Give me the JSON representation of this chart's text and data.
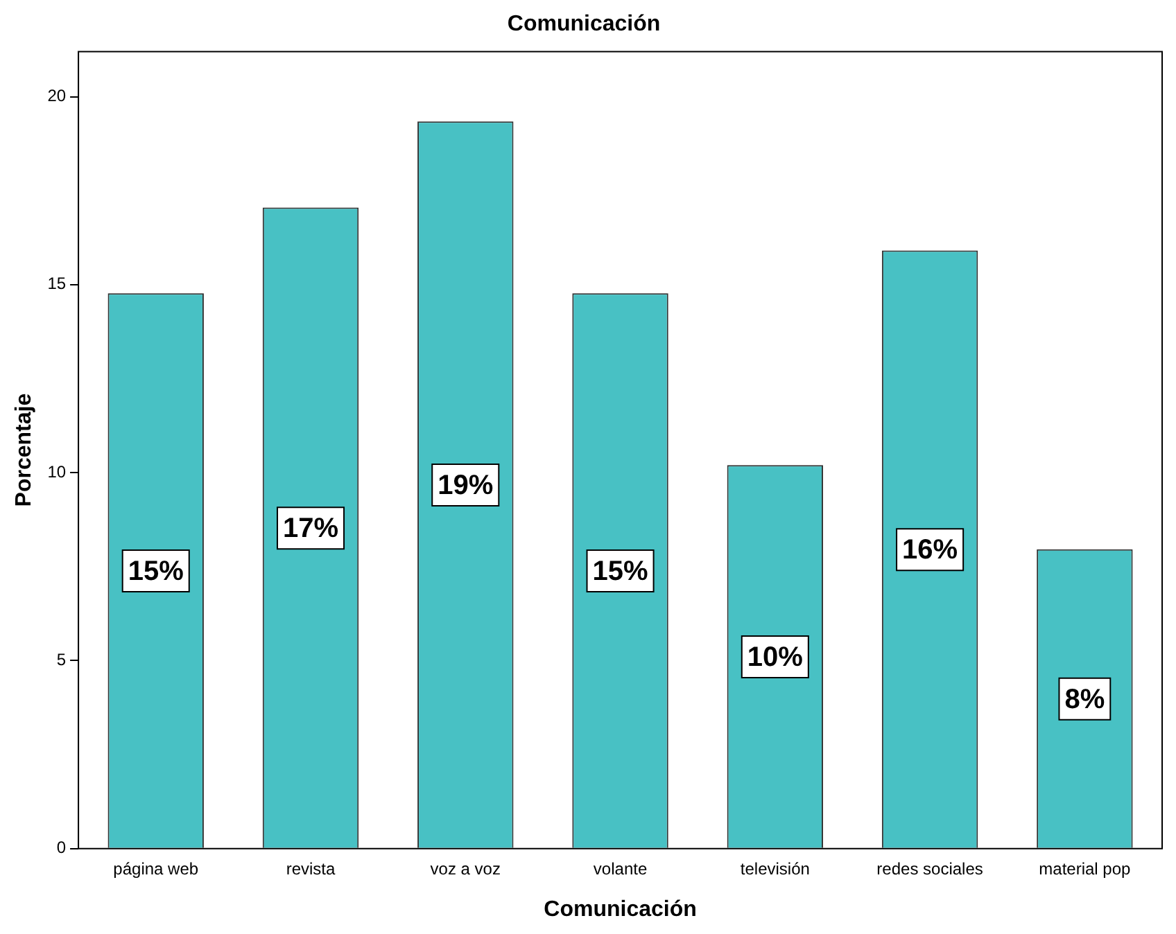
{
  "chart_data": {
    "type": "bar",
    "title": "Comunicación",
    "xlabel": "Comunicación",
    "ylabel": "Porcentaje",
    "categories": [
      "página web",
      "revista",
      "voz a voz",
      "volante",
      "televisión",
      "redes sociales",
      "material pop"
    ],
    "values": [
      14.77,
      17.05,
      19.34,
      14.77,
      10.2,
      15.91,
      7.96
    ],
    "value_labels": [
      "15%",
      "17%",
      "19%",
      "15%",
      "10%",
      "16%",
      "8%"
    ],
    "color": "#48c1c4",
    "ylim": [
      0,
      21.2
    ],
    "yticks": [
      0,
      5,
      10,
      15,
      20
    ],
    "grid": false,
    "legend": false
  }
}
